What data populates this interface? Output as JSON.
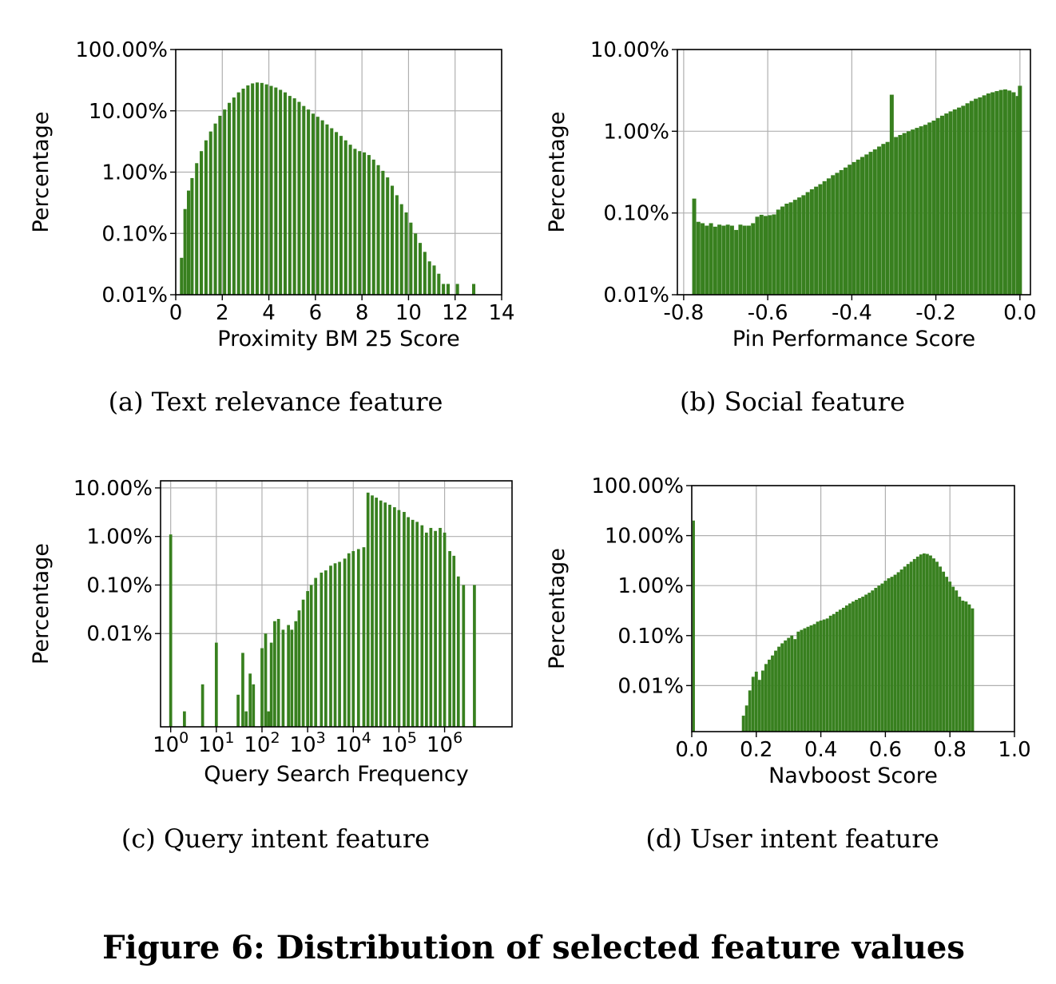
{
  "figure_title": "Figure 6: Distribution of selected feature values",
  "colors": {
    "bar": "#38801f",
    "grid": "#b0b0b0"
  },
  "chart_data": [
    {
      "id": "a",
      "type": "bar",
      "caption": "(a)  Text relevance feature",
      "xlabel": "Proximity BM 25 Score",
      "ylabel": "Percentage",
      "x_scale": "linear",
      "y_scale": "log",
      "xlim": [
        0,
        14
      ],
      "ylim": [
        0.01,
        100
      ],
      "xticks": [
        {
          "v": 0,
          "label": "0"
        },
        {
          "v": 2,
          "label": "2"
        },
        {
          "v": 4,
          "label": "4"
        },
        {
          "v": 6,
          "label": "6"
        },
        {
          "v": 8,
          "label": "8"
        },
        {
          "v": 10,
          "label": "10"
        },
        {
          "v": 12,
          "label": "12"
        },
        {
          "v": 14,
          "label": "14"
        }
      ],
      "yticks": [
        {
          "v": 0.01,
          "label": "0.01%"
        },
        {
          "v": 0.1,
          "label": "0.10%"
        },
        {
          "v": 1,
          "label": "1.00%"
        },
        {
          "v": 10,
          "label": "10.00%"
        },
        {
          "v": 100,
          "label": "100.00%"
        }
      ],
      "grid": true,
      "bin_width": 0.14,
      "bins": [
        [
          0.25,
          0.04
        ],
        [
          0.4,
          0.25
        ],
        [
          0.55,
          0.5
        ],
        [
          0.7,
          0.8
        ],
        [
          0.9,
          1.4
        ],
        [
          1.1,
          2.2
        ],
        [
          1.3,
          3.3
        ],
        [
          1.5,
          4.6
        ],
        [
          1.7,
          6.2
        ],
        [
          1.9,
          8.3
        ],
        [
          2.1,
          10.5
        ],
        [
          2.3,
          13.5
        ],
        [
          2.5,
          16.5
        ],
        [
          2.7,
          20
        ],
        [
          2.9,
          23
        ],
        [
          3.1,
          26
        ],
        [
          3.3,
          28
        ],
        [
          3.5,
          29
        ],
        [
          3.7,
          28.5
        ],
        [
          3.9,
          27
        ],
        [
          4.1,
          25.5
        ],
        [
          4.3,
          24
        ],
        [
          4.5,
          22
        ],
        [
          4.7,
          20
        ],
        [
          4.9,
          17.5
        ],
        [
          5.1,
          16
        ],
        [
          5.3,
          14
        ],
        [
          5.5,
          12
        ],
        [
          5.7,
          10.5
        ],
        [
          5.9,
          9
        ],
        [
          6.1,
          8
        ],
        [
          6.3,
          7
        ],
        [
          6.5,
          6
        ],
        [
          6.7,
          5.2
        ],
        [
          6.9,
          4.5
        ],
        [
          7.1,
          3.9
        ],
        [
          7.3,
          3.3
        ],
        [
          7.5,
          2.8
        ],
        [
          7.7,
          2.4
        ],
        [
          7.9,
          2.2
        ],
        [
          8.1,
          2.1
        ],
        [
          8.3,
          1.9
        ],
        [
          8.5,
          1.6
        ],
        [
          8.7,
          1.3
        ],
        [
          8.9,
          1.05
        ],
        [
          9.1,
          0.82
        ],
        [
          9.3,
          0.6
        ],
        [
          9.5,
          0.42
        ],
        [
          9.7,
          0.3
        ],
        [
          9.9,
          0.22
        ],
        [
          10.1,
          0.15
        ],
        [
          10.3,
          0.1
        ],
        [
          10.5,
          0.07
        ],
        [
          10.7,
          0.05
        ],
        [
          10.9,
          0.035
        ],
        [
          11.1,
          0.03
        ],
        [
          11.3,
          0.022
        ],
        [
          11.5,
          0.015
        ],
        [
          11.7,
          0.015
        ],
        [
          12.1,
          0.015
        ],
        [
          12.8,
          0.015
        ]
      ]
    },
    {
      "id": "b",
      "type": "bar",
      "caption": "(b)  Social feature",
      "xlabel": "Pin Performance Score",
      "ylabel": "Percentage",
      "x_scale": "linear",
      "y_scale": "log",
      "xlim": [
        -0.815,
        0.025
      ],
      "ylim": [
        0.01,
        10
      ],
      "xticks": [
        {
          "v": -0.8,
          "label": "-0.8"
        },
        {
          "v": -0.6,
          "label": "-0.6"
        },
        {
          "v": -0.4,
          "label": "-0.4"
        },
        {
          "v": -0.2,
          "label": "-0.2"
        },
        {
          "v": 0.0,
          "label": "0.0"
        }
      ],
      "yticks": [
        {
          "v": 0.01,
          "label": "0.01%"
        },
        {
          "v": 0.1,
          "label": "0.10%"
        },
        {
          "v": 1,
          "label": "1.00%"
        },
        {
          "v": 10,
          "label": "10.00%"
        }
      ],
      "grid": true,
      "bin_width": 0.0095,
      "bins": [
        [
          -0.775,
          0.15
        ],
        [
          -0.765,
          0.078
        ],
        [
          -0.755,
          0.075
        ],
        [
          -0.745,
          0.07
        ],
        [
          -0.735,
          0.075
        ],
        [
          -0.725,
          0.068
        ],
        [
          -0.715,
          0.072
        ],
        [
          -0.705,
          0.07
        ],
        [
          -0.695,
          0.072
        ],
        [
          -0.685,
          0.07
        ],
        [
          -0.675,
          0.062
        ],
        [
          -0.665,
          0.072
        ],
        [
          -0.655,
          0.07
        ],
        [
          -0.645,
          0.07
        ],
        [
          -0.635,
          0.075
        ],
        [
          -0.625,
          0.09
        ],
        [
          -0.615,
          0.095
        ],
        [
          -0.605,
          0.092
        ],
        [
          -0.595,
          0.094
        ],
        [
          -0.585,
          0.096
        ],
        [
          -0.575,
          0.11
        ],
        [
          -0.565,
          0.12
        ],
        [
          -0.555,
          0.13
        ],
        [
          -0.545,
          0.135
        ],
        [
          -0.535,
          0.145
        ],
        [
          -0.525,
          0.155
        ],
        [
          -0.515,
          0.165
        ],
        [
          -0.505,
          0.18
        ],
        [
          -0.495,
          0.195
        ],
        [
          -0.485,
          0.21
        ],
        [
          -0.475,
          0.225
        ],
        [
          -0.465,
          0.245
        ],
        [
          -0.455,
          0.265
        ],
        [
          -0.445,
          0.29
        ],
        [
          -0.435,
          0.31
        ],
        [
          -0.425,
          0.335
        ],
        [
          -0.415,
          0.36
        ],
        [
          -0.405,
          0.39
        ],
        [
          -0.395,
          0.42
        ],
        [
          -0.385,
          0.45
        ],
        [
          -0.375,
          0.485
        ],
        [
          -0.365,
          0.52
        ],
        [
          -0.355,
          0.56
        ],
        [
          -0.345,
          0.6
        ],
        [
          -0.335,
          0.65
        ],
        [
          -0.325,
          0.7
        ],
        [
          -0.315,
          0.74
        ],
        [
          -0.305,
          2.8
        ],
        [
          -0.295,
          0.85
        ],
        [
          -0.285,
          0.9
        ],
        [
          -0.275,
          0.95
        ],
        [
          -0.265,
          1.0
        ],
        [
          -0.255,
          1.05
        ],
        [
          -0.245,
          1.1
        ],
        [
          -0.235,
          1.15
        ],
        [
          -0.225,
          1.2
        ],
        [
          -0.215,
          1.28
        ],
        [
          -0.205,
          1.35
        ],
        [
          -0.195,
          1.45
        ],
        [
          -0.185,
          1.55
        ],
        [
          -0.175,
          1.65
        ],
        [
          -0.165,
          1.75
        ],
        [
          -0.155,
          1.85
        ],
        [
          -0.145,
          1.95
        ],
        [
          -0.135,
          2.05
        ],
        [
          -0.125,
          2.2
        ],
        [
          -0.115,
          2.35
        ],
        [
          -0.105,
          2.5
        ],
        [
          -0.095,
          2.6
        ],
        [
          -0.085,
          2.75
        ],
        [
          -0.075,
          2.9
        ],
        [
          -0.065,
          3.0
        ],
        [
          -0.055,
          3.1
        ],
        [
          -0.045,
          3.2
        ],
        [
          -0.035,
          3.25
        ],
        [
          -0.025,
          3.15
        ],
        [
          -0.015,
          3.0
        ],
        [
          -0.005,
          2.7
        ],
        [
          0.0,
          3.6
        ]
      ]
    },
    {
      "id": "c",
      "type": "bar",
      "caption": "(c)  Query intent feature",
      "xlabel": "Query Search Frequency",
      "ylabel": "Percentage",
      "x_scale": "log",
      "y_scale": "log",
      "xlim": [
        0.6,
        30000000
      ],
      "ylim": [
        0.00012,
        14
      ],
      "xticks": [
        {
          "v": 1,
          "base": "10",
          "exp": "0"
        },
        {
          "v": 10,
          "base": "10",
          "exp": "1"
        },
        {
          "v": 100,
          "base": "10",
          "exp": "2"
        },
        {
          "v": 1000,
          "base": "10",
          "exp": "3"
        },
        {
          "v": 10000,
          "base": "10",
          "exp": "4"
        },
        {
          "v": 100000,
          "base": "10",
          "exp": "5"
        },
        {
          "v": 1000000,
          "base": "10",
          "exp": "6"
        }
      ],
      "yticks": [
        {
          "v": 0.01,
          "label": "0.01%"
        },
        {
          "v": 0.1,
          "label": "0.10%"
        },
        {
          "v": 1,
          "label": "1.00%"
        },
        {
          "v": 10,
          "label": "10.00%"
        }
      ],
      "grid": true,
      "bin_width_log10": 0.065,
      "bins": [
        [
          1.0,
          1.1
        ],
        [
          2.0,
          0.00025
        ],
        [
          5.0,
          0.0009
        ],
        [
          10.0,
          0.0065
        ],
        [
          30.0,
          0.00055
        ],
        [
          38.0,
          0.004
        ],
        [
          45.0,
          0.00025
        ],
        [
          55.0,
          0.0015
        ],
        [
          65.0,
          0.0009
        ],
        [
          100.0,
          0.005
        ],
        [
          120.0,
          0.01
        ],
        [
          140.0,
          0.00025
        ],
        [
          160.0,
          0.0065
        ],
        [
          190.0,
          0.018
        ],
        [
          230.0,
          0.02
        ],
        [
          290.0,
          0.012
        ],
        [
          380.0,
          0.015
        ],
        [
          450.0,
          0.012
        ],
        [
          550.0,
          0.018
        ],
        [
          650.0,
          0.03
        ],
        [
          800.0,
          0.05
        ],
        [
          1000.0,
          0.075
        ],
        [
          1200.0,
          0.1
        ],
        [
          1500.0,
          0.14
        ],
        [
          2000.0,
          0.18
        ],
        [
          2500.0,
          0.2
        ],
        [
          3200.0,
          0.25
        ],
        [
          4000.0,
          0.28
        ],
        [
          5000.0,
          0.3
        ],
        [
          6500.0,
          0.35
        ],
        [
          8000.0,
          0.45
        ],
        [
          10000.0,
          0.5
        ],
        [
          13000.0,
          0.55
        ],
        [
          17000.0,
          0.6
        ],
        [
          21000.0,
          8
        ],
        [
          26000.0,
          7
        ],
        [
          32000.0,
          6.3
        ],
        [
          40000.0,
          5.5
        ],
        [
          50000.0,
          5
        ],
        [
          63000.0,
          4.5
        ],
        [
          80000.0,
          4
        ],
        [
          100000.0,
          3.5
        ],
        [
          130000.0,
          3.2
        ],
        [
          160000.0,
          2.5
        ],
        [
          200000.0,
          2.2
        ],
        [
          250000.0,
          2
        ],
        [
          320000.0,
          1.7
        ],
        [
          400000.0,
          1.2
        ],
        [
          500000.0,
          1.5
        ],
        [
          630000.0,
          1.3
        ],
        [
          800000.0,
          1.5
        ],
        [
          1000000.0,
          1.2
        ],
        [
          1300000.0,
          0.5
        ],
        [
          1600000.0,
          0.4
        ],
        [
          2000000.0,
          0.15
        ],
        [
          2600000.0,
          0.1
        ],
        [
          4500000.0,
          0.1
        ]
      ]
    },
    {
      "id": "d",
      "type": "bar",
      "caption": "(d)  User intent feature",
      "xlabel": "Navboost Score",
      "ylabel": "Percentage",
      "x_scale": "linear",
      "y_scale": "log",
      "xlim": [
        0.0,
        1.0
      ],
      "ylim": [
        0.0012,
        100
      ],
      "xticks": [
        {
          "v": 0.0,
          "label": "0.0"
        },
        {
          "v": 0.2,
          "label": "0.2"
        },
        {
          "v": 0.4,
          "label": "0.4"
        },
        {
          "v": 0.6,
          "label": "0.6"
        },
        {
          "v": 0.8,
          "label": "0.8"
        },
        {
          "v": 1.0,
          "label": "1.0"
        }
      ],
      "yticks": [
        {
          "v": 0.01,
          "label": "0.01%"
        },
        {
          "v": 0.1,
          "label": "0.10%"
        },
        {
          "v": 1,
          "label": "1.00%"
        },
        {
          "v": 10,
          "label": "10.00%"
        },
        {
          "v": 100,
          "label": "100.00%"
        }
      ],
      "grid": true,
      "bin_width": 0.0095,
      "bins": [
        [
          0.005,
          20
        ],
        [
          0.16,
          0.0025
        ],
        [
          0.17,
          0.004
        ],
        [
          0.18,
          0.008
        ],
        [
          0.19,
          0.015
        ],
        [
          0.2,
          0.019
        ],
        [
          0.21,
          0.013
        ],
        [
          0.22,
          0.02
        ],
        [
          0.23,
          0.027
        ],
        [
          0.24,
          0.033
        ],
        [
          0.25,
          0.04
        ],
        [
          0.26,
          0.05
        ],
        [
          0.27,
          0.06
        ],
        [
          0.28,
          0.07
        ],
        [
          0.29,
          0.08
        ],
        [
          0.3,
          0.09
        ],
        [
          0.31,
          0.1
        ],
        [
          0.32,
          0.085
        ],
        [
          0.33,
          0.12
        ],
        [
          0.34,
          0.13
        ],
        [
          0.35,
          0.14
        ],
        [
          0.36,
          0.15
        ],
        [
          0.37,
          0.16
        ],
        [
          0.38,
          0.17
        ],
        [
          0.39,
          0.19
        ],
        [
          0.4,
          0.2
        ],
        [
          0.41,
          0.21
        ],
        [
          0.42,
          0.22
        ],
        [
          0.43,
          0.25
        ],
        [
          0.44,
          0.27
        ],
        [
          0.45,
          0.3
        ],
        [
          0.46,
          0.33
        ],
        [
          0.47,
          0.36
        ],
        [
          0.48,
          0.4
        ],
        [
          0.49,
          0.44
        ],
        [
          0.5,
          0.48
        ],
        [
          0.51,
          0.52
        ],
        [
          0.52,
          0.56
        ],
        [
          0.53,
          0.6
        ],
        [
          0.54,
          0.66
        ],
        [
          0.55,
          0.72
        ],
        [
          0.56,
          0.8
        ],
        [
          0.57,
          0.9
        ],
        [
          0.58,
          1.0
        ],
        [
          0.59,
          1.1
        ],
        [
          0.6,
          1.25
        ],
        [
          0.61,
          1.4
        ],
        [
          0.62,
          1.5
        ],
        [
          0.63,
          1.65
        ],
        [
          0.64,
          1.85
        ],
        [
          0.65,
          2.1
        ],
        [
          0.66,
          2.4
        ],
        [
          0.67,
          2.7
        ],
        [
          0.68,
          3.0
        ],
        [
          0.69,
          3.4
        ],
        [
          0.7,
          3.8
        ],
        [
          0.71,
          4.2
        ],
        [
          0.72,
          4.4
        ],
        [
          0.73,
          4.3
        ],
        [
          0.74,
          4.0
        ],
        [
          0.75,
          3.5
        ],
        [
          0.76,
          3.0
        ],
        [
          0.77,
          2.4
        ],
        [
          0.78,
          1.9
        ],
        [
          0.79,
          1.5
        ],
        [
          0.8,
          1.2
        ],
        [
          0.81,
          0.95
        ],
        [
          0.82,
          0.8
        ],
        [
          0.83,
          0.6
        ],
        [
          0.84,
          0.5
        ],
        [
          0.85,
          0.48
        ],
        [
          0.86,
          0.42
        ],
        [
          0.87,
          0.35
        ]
      ]
    }
  ]
}
